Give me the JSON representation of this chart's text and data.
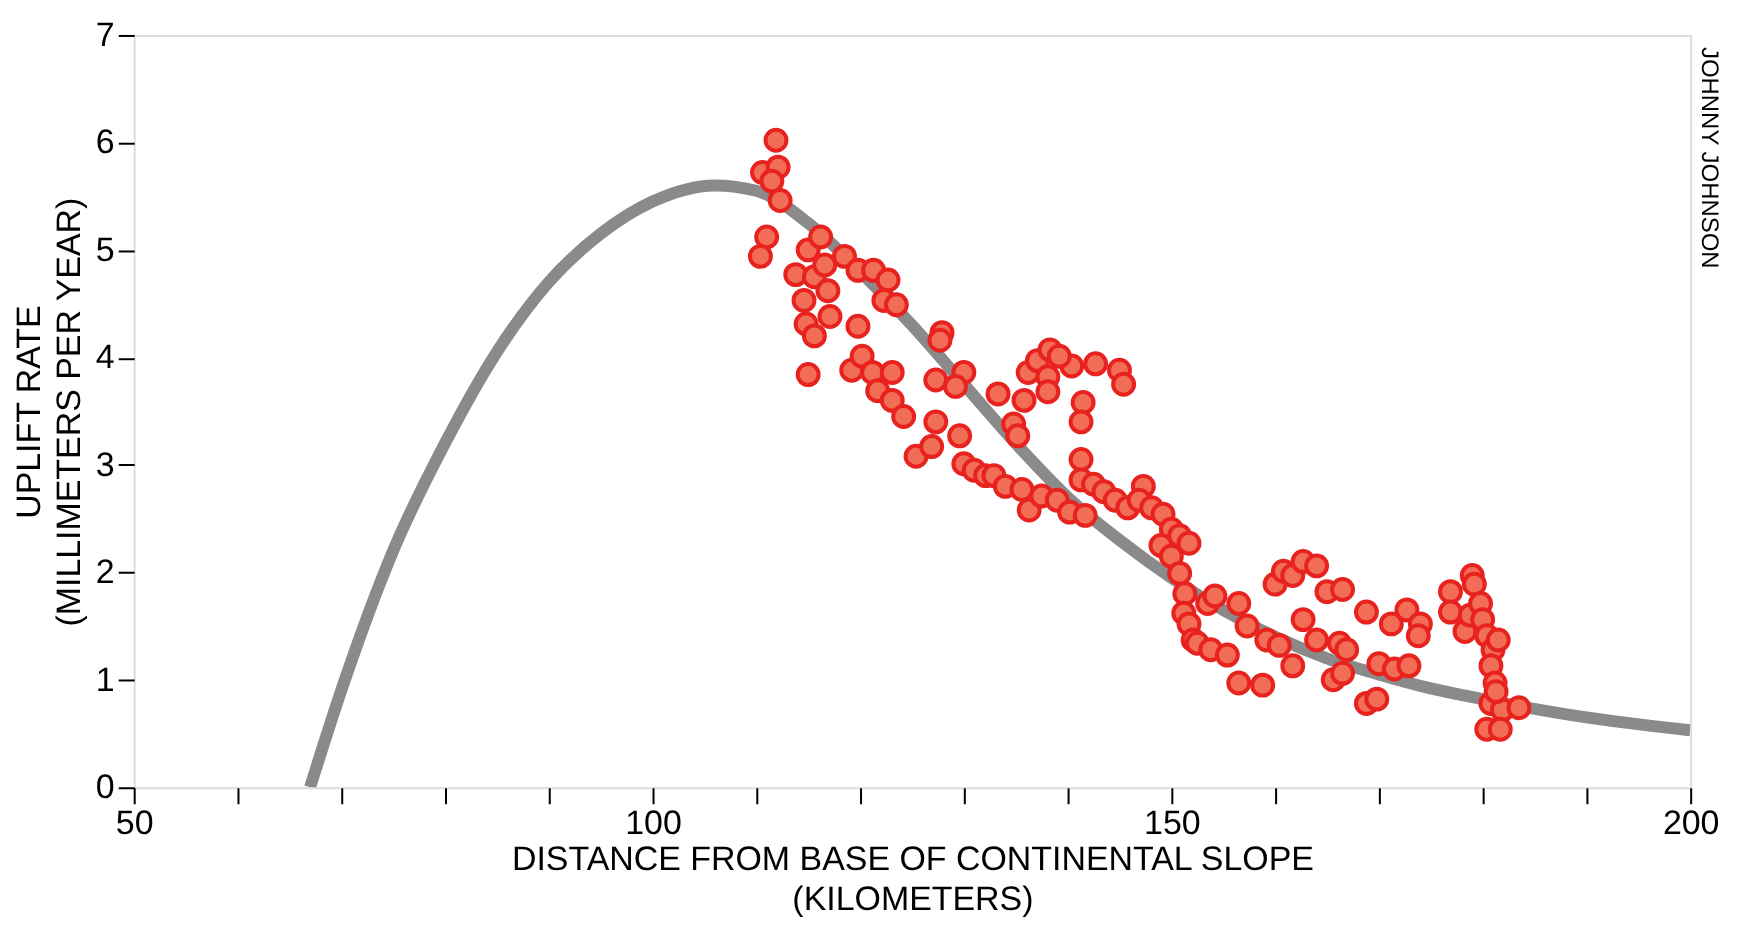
{
  "chart_data": {
    "type": "scatter",
    "xlabel": "DISTANCE FROM BASE OF CONTINENTAL SLOPE\n(KILOMETERS)",
    "ylabel": "UPLIFT RATE\n(MILLIMETERS PER YEAR)",
    "xlim": [
      50,
      200
    ],
    "ylim": [
      0,
      7
    ],
    "xticks": [
      50,
      {
        "value": 60,
        "label": null
      },
      {
        "value": 70,
        "label": null
      },
      {
        "value": 80,
        "label": null
      },
      {
        "value": 90,
        "label": null
      },
      100,
      {
        "value": 110,
        "label": null
      },
      {
        "value": 120,
        "label": null
      },
      {
        "value": 130,
        "label": null
      },
      {
        "value": 140,
        "label": null
      },
      150,
      {
        "value": 160,
        "label": null
      },
      {
        "value": 170,
        "label": null
      },
      {
        "value": 180,
        "label": null
      },
      {
        "value": 190,
        "label": null
      },
      200
    ],
    "yticks": [
      0,
      1,
      2,
      3,
      4,
      5,
      6,
      7
    ],
    "grid": false,
    "marker": "circle",
    "annotations": [
      "JOHNNY JOHNSON"
    ],
    "series": [
      {
        "type": "line",
        "color": "#8a8a8a",
        "line_style": "solid",
        "marker": "none",
        "x": [
          67,
          70,
          75,
          80,
          85,
          90,
          95,
          100,
          106,
          110,
          115,
          120,
          125,
          130,
          135,
          140,
          145,
          150,
          155,
          160,
          165,
          170,
          175,
          180,
          190,
          200
        ],
        "values": [
          0,
          0.9,
          2.2,
          3.2,
          4.05,
          4.7,
          5.15,
          5.45,
          5.6,
          5.55,
          5.25,
          4.8,
          4.3,
          3.75,
          3.2,
          2.7,
          2.3,
          1.95,
          1.65,
          1.4,
          1.2,
          1.05,
          0.92,
          0.82,
          0.65,
          0.53
        ]
      },
      {
        "color": "#f26d55",
        "x": [
          111.9,
          110.6,
          112.1,
          111.5,
          112.3,
          111.0,
          110.4,
          113.8,
          115.0,
          116.2,
          114.6,
          115.6,
          116.6,
          114.8,
          115.6,
          115.0,
          117.1,
          116.9,
          118.5,
          119.8,
          119.8,
          119.2,
          120.2,
          121.2,
          121.3,
          122.7,
          122.3,
          123.5,
          121.7,
          123.1,
          123.1,
          124.2,
          125.4,
          127.3,
          127.9,
          127.7,
          127.3,
          126.9,
          130.0,
          129.2,
          129.6,
          130.0,
          131.0,
          132.1,
          133.3,
          132.9,
          134.0,
          135.6,
          134.8,
          135.2,
          136.2,
          135.8,
          137.1,
          138.3,
          138.1,
          138.1,
          140.4,
          139.2,
          136.3,
          137.5,
          139.0,
          140.2,
          141.7,
          141.5,
          141.3,
          141.3,
          141.3,
          142.7,
          145.0,
          145.4,
          142.5,
          143.5,
          144.6,
          145.8,
          147.3,
          146.9,
          148.1,
          149.2,
          150.0,
          150.8,
          149.0,
          150.0,
          151.7,
          150.8,
          151.3,
          151.2,
          151.7,
          152.1,
          152.5,
          153.5,
          154.2,
          153.8,
          155.4,
          156.5,
          157.3,
          156.5,
          158.8,
          159.2,
          160.0,
          160.8,
          161.7,
          162.7,
          164.0,
          160.4,
          161.7,
          162.7,
          164.0,
          165.0,
          166.5,
          165.6,
          166.5,
          166.2,
          166.9,
          168.8,
          168.8,
          169.8,
          170.0,
          171.2,
          171.5,
          172.9,
          172.7,
          174.0,
          173.8,
          176.9,
          176.9,
          178.3,
          179.0,
          179.2,
          178.8,
          179.8,
          180.0,
          180.4,
          181.0,
          181.5,
          180.8,
          181.2,
          180.8,
          181.9,
          183.5,
          180.4,
          181.7,
          181.3
        ],
        "values": [
          6.02,
          5.72,
          5.77,
          5.64,
          5.46,
          5.12,
          4.94,
          4.77,
          5.0,
          5.12,
          4.53,
          4.75,
          4.86,
          4.31,
          4.2,
          3.84,
          4.38,
          4.62,
          4.94,
          4.81,
          4.29,
          3.88,
          4.01,
          3.86,
          4.81,
          4.72,
          4.53,
          4.49,
          3.69,
          3.6,
          3.86,
          3.45,
          3.08,
          3.4,
          4.23,
          4.16,
          3.79,
          3.17,
          3.86,
          3.73,
          3.27,
          3.01,
          2.95,
          2.9,
          3.66,
          2.9,
          2.8,
          2.77,
          3.38,
          3.27,
          3.86,
          3.6,
          3.97,
          4.07,
          3.82,
          3.68,
          3.92,
          4.01,
          2.58,
          2.71,
          2.67,
          2.56,
          2.53,
          3.58,
          3.4,
          3.05,
          2.86,
          3.94,
          3.88,
          3.75,
          2.82,
          2.75,
          2.67,
          2.6,
          2.8,
          2.67,
          2.6,
          2.54,
          2.4,
          2.34,
          2.25,
          2.15,
          2.27,
          1.99,
          1.8,
          1.62,
          1.52,
          1.37,
          1.34,
          1.71,
          1.78,
          1.28,
          1.23,
          1.71,
          1.5,
          0.97,
          0.95,
          1.37,
          1.89,
          2.01,
          1.97,
          2.1,
          2.06,
          1.32,
          1.13,
          1.56,
          1.37,
          1.82,
          1.84,
          1.0,
          1.06,
          1.34,
          1.28,
          1.63,
          0.78,
          0.82,
          1.15,
          1.52,
          1.1,
          1.13,
          1.65,
          1.52,
          1.41,
          1.82,
          1.63,
          1.45,
          1.97,
          1.89,
          1.6,
          1.71,
          1.56,
          1.41,
          1.28,
          1.37,
          1.13,
          0.97,
          0.78,
          0.72,
          0.74,
          0.54,
          0.54,
          0.89
        ]
      }
    ]
  }
}
